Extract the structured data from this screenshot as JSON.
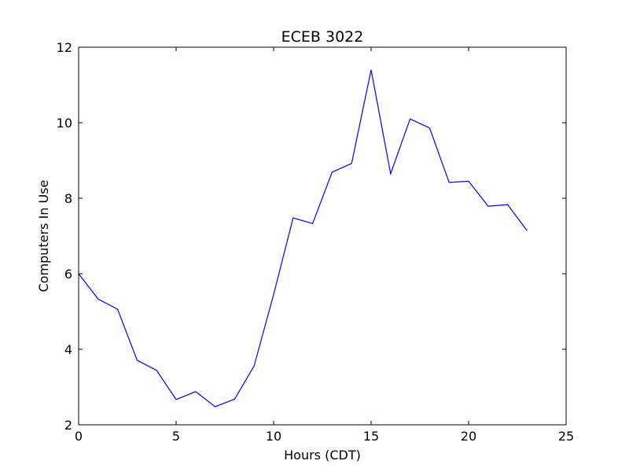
{
  "chart_data": {
    "type": "line",
    "title": "ECEB 3022",
    "xlabel": "Hours (CDT)",
    "ylabel": "Computers In Use",
    "xlim": [
      0,
      25
    ],
    "ylim": [
      2,
      12
    ],
    "xticks": [
      0,
      5,
      10,
      15,
      20,
      25
    ],
    "yticks": [
      2,
      4,
      6,
      8,
      10,
      12
    ],
    "xtick_labels": [
      "0",
      "5",
      "10",
      "15",
      "20",
      "25"
    ],
    "ytick_labels": [
      "2",
      "4",
      "6",
      "8",
      "10",
      "12"
    ],
    "grid": false,
    "legend": "none",
    "series": [
      {
        "color": "#0000ff",
        "x": [
          0,
          1,
          2,
          3,
          4,
          5,
          6,
          7,
          8,
          9,
          10,
          11,
          12,
          13,
          14,
          15,
          16,
          17,
          18,
          19,
          20,
          21,
          22,
          23
        ],
        "values": [
          6.0,
          5.33,
          5.06,
          3.71,
          3.44,
          2.67,
          2.88,
          2.48,
          2.68,
          3.56,
          5.45,
          7.48,
          7.33,
          8.69,
          8.92,
          11.4,
          8.65,
          10.1,
          9.86,
          8.42,
          8.45,
          7.79,
          7.83,
          7.14
        ]
      }
    ]
  }
}
